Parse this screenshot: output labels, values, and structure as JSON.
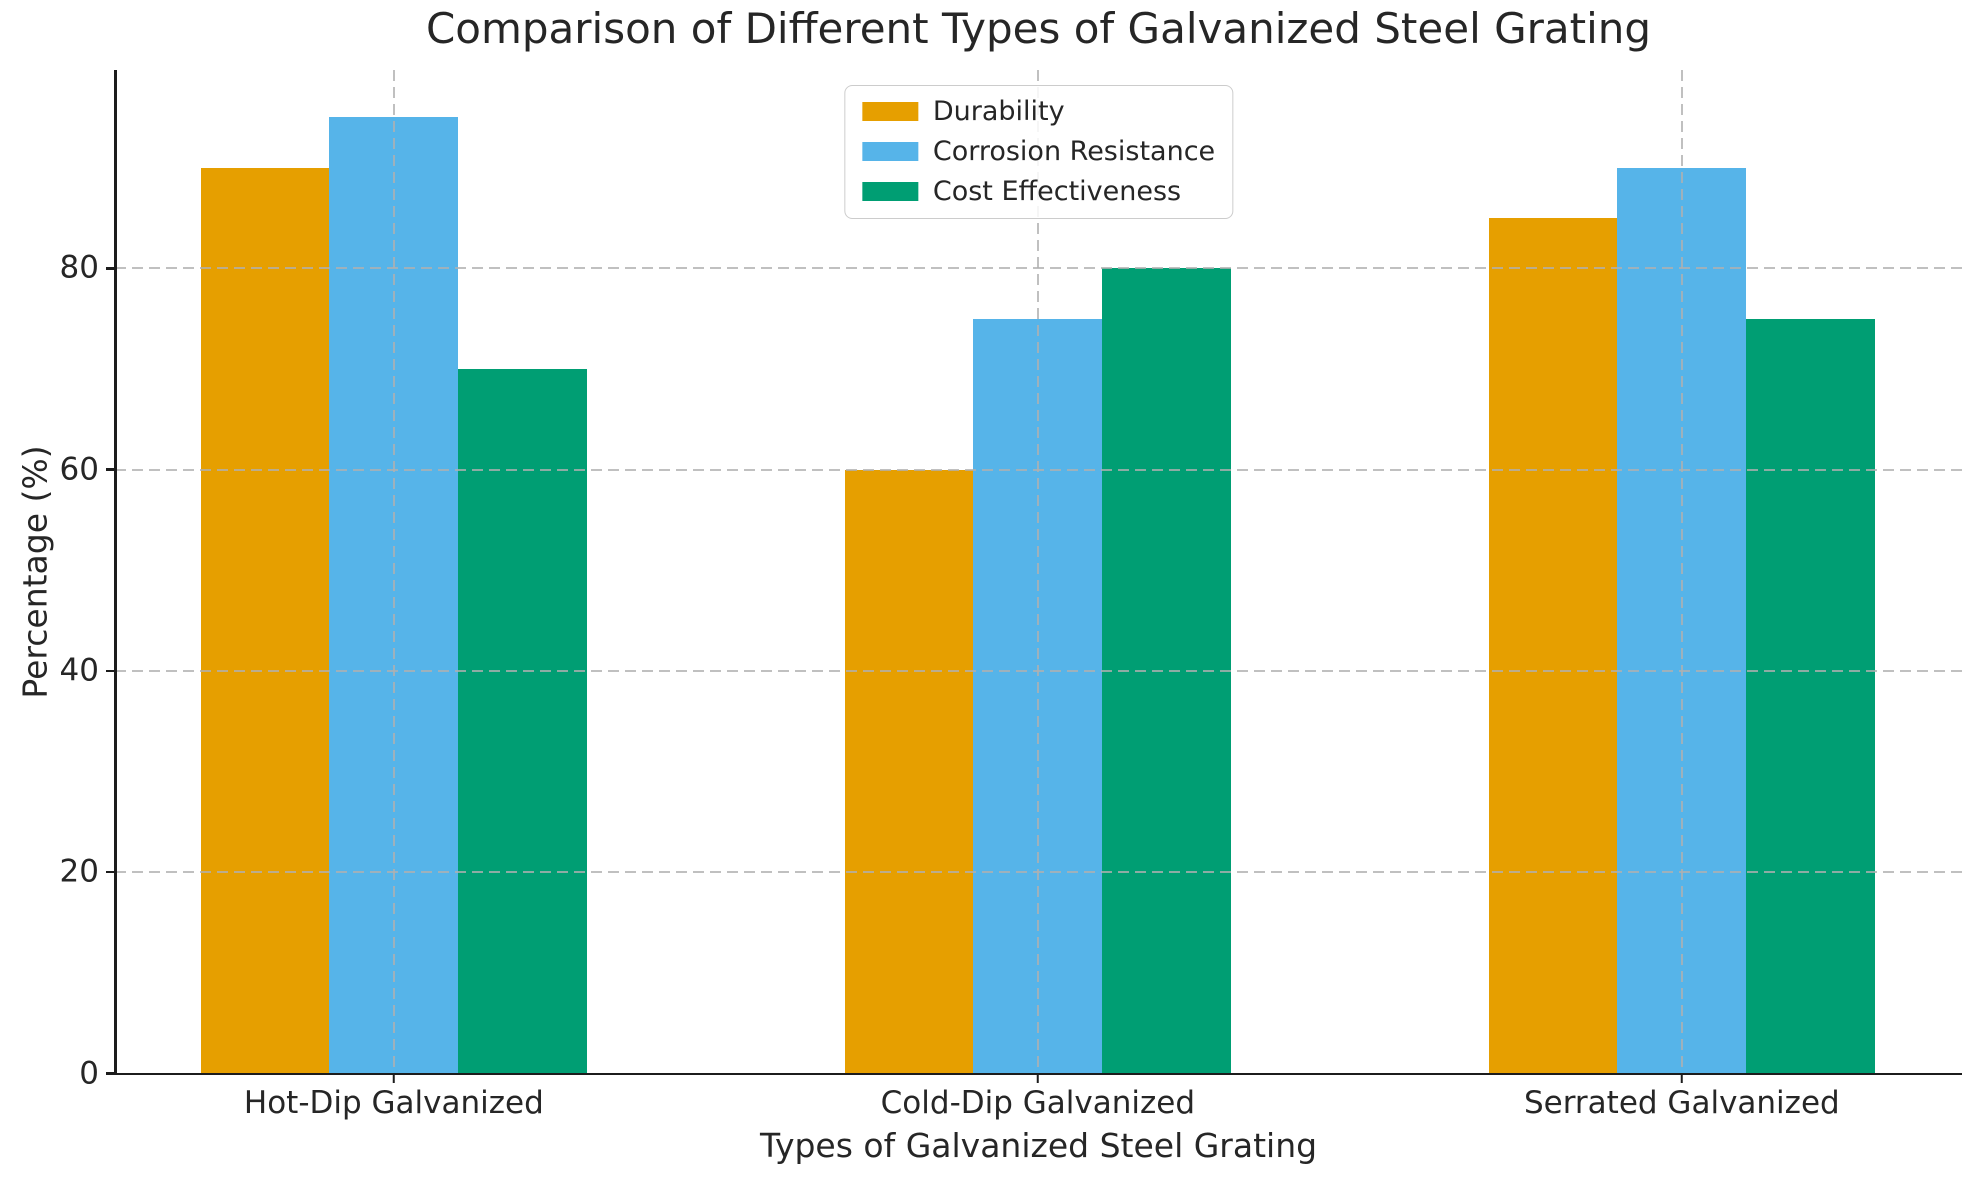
{
  "chart_data": {
    "type": "bar",
    "title": "Comparison of Different Types of Galvanized Steel Grating",
    "xlabel": "Types of Galvanized Steel Grating",
    "ylabel": "Percentage (%)",
    "categories": [
      "Hot-Dip Galvanized",
      "Cold-Dip Galvanized",
      "Serrated Galvanized"
    ],
    "series": [
      {
        "name": "Durability",
        "color": "#E69F00",
        "values": [
          90,
          60,
          85
        ]
      },
      {
        "name": "Corrosion Resistance",
        "color": "#56B4E9",
        "values": [
          95,
          75,
          90
        ]
      },
      {
        "name": "Cost Effectiveness",
        "color": "#009E73",
        "values": [
          70,
          80,
          75
        ]
      }
    ],
    "ylim": [
      0,
      99.75
    ],
    "yticks": [
      0,
      20,
      40,
      60,
      80
    ],
    "xlim": [
      -0.433,
      2.435
    ],
    "bar_width": 0.2,
    "grid": {
      "style": "dashed",
      "axis": "both",
      "above_bars": true
    },
    "legend_position": "upper center",
    "colors": {
      "grid": "#b0b0b0",
      "text": "#262626",
      "spine": "#1c1c1c",
      "legend_border": "#cccccc",
      "background": "#ffffff"
    }
  }
}
